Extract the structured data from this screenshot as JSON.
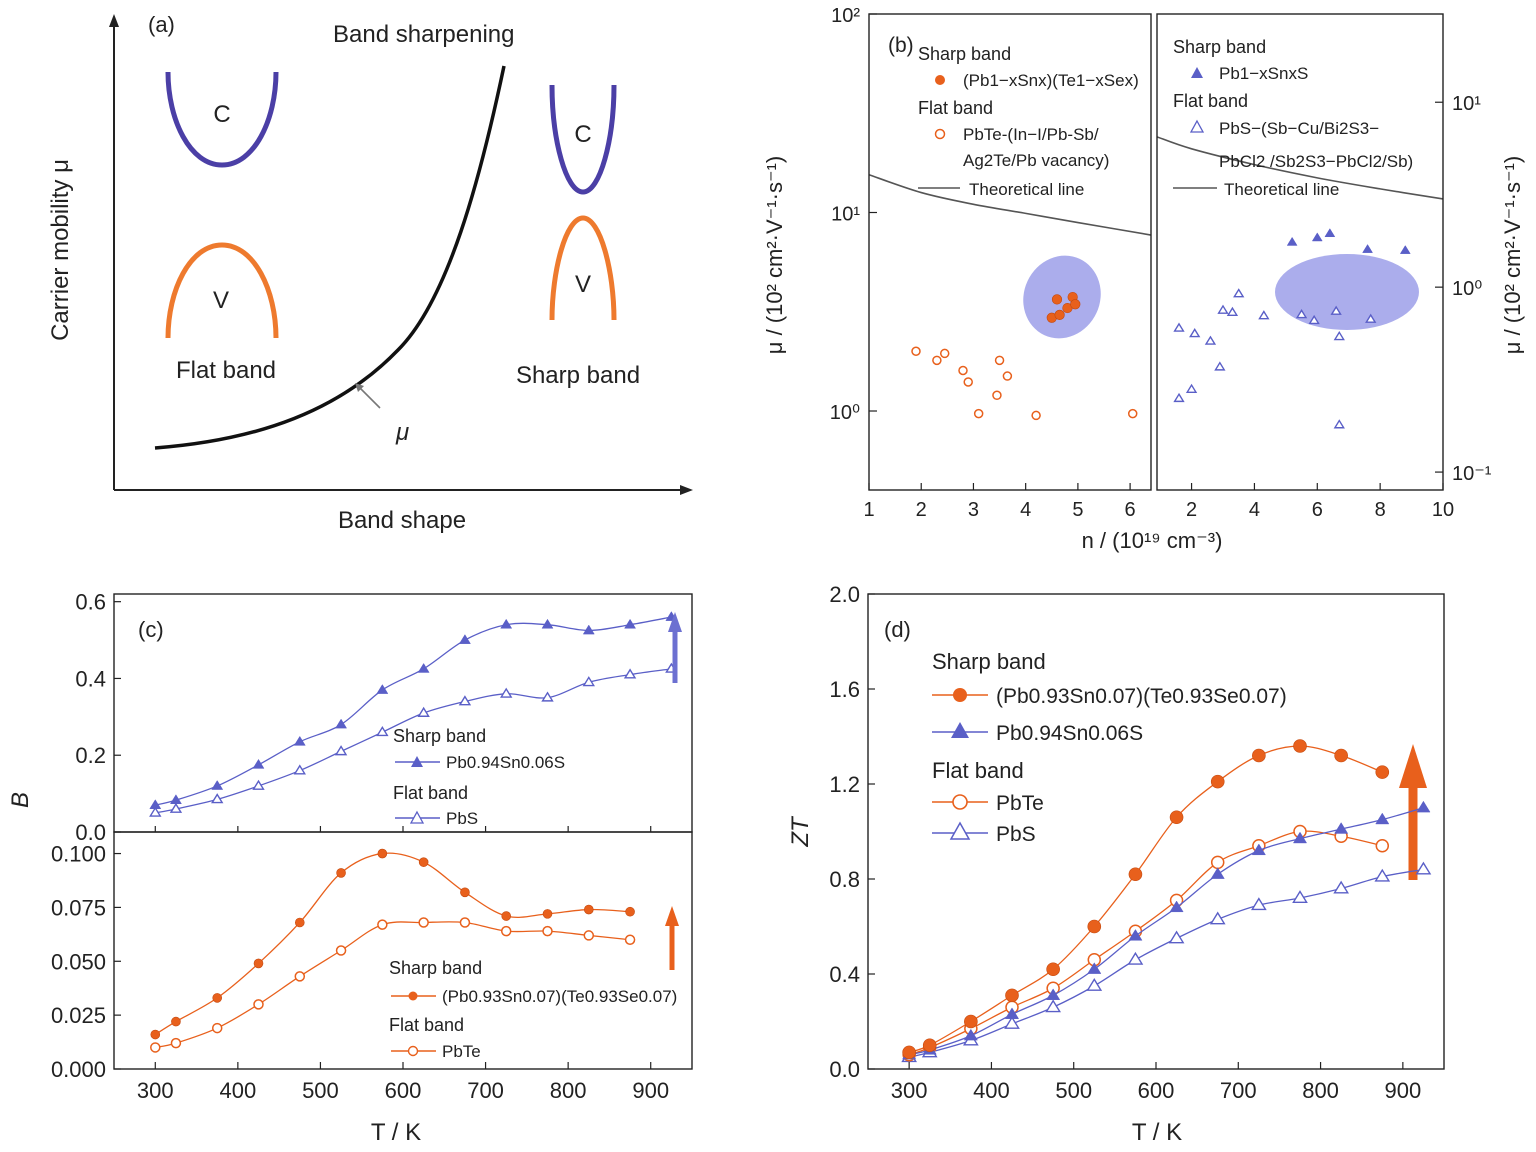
{
  "colors": {
    "orange": "#e8601c",
    "blue": "#5a5fc7",
    "conduction": "#4b3fa6",
    "ellipse": "#8f92e6",
    "theory": "#555555",
    "axis": "#222222"
  },
  "panel_a": {
    "label": "(a)",
    "title": "Band sharpening",
    "ylabel": "Carrier mobility μ",
    "xlabel": "Band shape",
    "flat_caption": "Flat band",
    "sharp_caption": "Sharp band",
    "conduction_label": "C",
    "valence_label": "V",
    "curve_label": "μ"
  },
  "panel_b": {
    "label": "(b)",
    "ylabel_left": "μ / (10² cm²·V⁻¹·s⁻¹)",
    "ylabel_right": "μ / (10² cm²·V⁻¹·s⁻¹)",
    "xlabel": "n / (10¹⁹ cm⁻³)",
    "left_ticks_x": [
      "1",
      "2",
      "3",
      "4",
      "5",
      "6"
    ],
    "right_ticks_x": [
      "2",
      "4",
      "6",
      "8",
      "10"
    ],
    "left_ticks_y": [
      "10⁰",
      "10¹",
      "10²"
    ],
    "right_ticks_y": [
      "10⁻¹",
      "10⁰",
      "10¹"
    ],
    "left_legend": {
      "sharp_title": "Sharp band",
      "sharp_entry": "(Pb1−xSnx)(Te1−xSex)",
      "flat_title": "Flat band",
      "flat_entry_1": "PbTe-(In−I/Pb-Sb/",
      "flat_entry_2": "Ag2Te/Pb vacancy)",
      "theory": "Theoretical line"
    },
    "right_legend": {
      "sharp_title": "Sharp band",
      "sharp_entry": "Pb1−xSnxS",
      "flat_title": "Flat band",
      "flat_entry_1": "PbS−(Sb−Cu/Bi2S3−",
      "flat_entry_2": "PbCl2 /Sb2S3−PbCl2/Sb)",
      "theory": "Theoretical line"
    }
  },
  "panel_c": {
    "label": "(c)",
    "ylabel": "B",
    "xlabel": "T / K",
    "x_ticks": [
      "300",
      "400",
      "500",
      "600",
      "700",
      "800",
      "900"
    ],
    "top_y_ticks": [
      "0.0",
      "0.2",
      "0.4",
      "0.6"
    ],
    "bottom_y_ticks": [
      "0.000",
      "0.025",
      "0.050",
      "0.075",
      "0.100"
    ],
    "top_legend": {
      "sharp_title": "Sharp band",
      "sharp_entry": "Pb0.94Sn0.06S",
      "flat_title": "Flat band",
      "flat_entry": "PbS"
    },
    "bottom_legend": {
      "sharp_title": "Sharp band",
      "sharp_entry": "(Pb0.93Sn0.07)(Te0.93Se0.07)",
      "flat_title": "Flat band",
      "flat_entry": "PbTe"
    }
  },
  "panel_d": {
    "label": "(d)",
    "ylabel": "ZT",
    "xlabel": "T / K",
    "x_ticks": [
      "300",
      "400",
      "500",
      "600",
      "700",
      "800",
      "900"
    ],
    "y_ticks": [
      "0.0",
      "0.4",
      "0.8",
      "1.2",
      "1.6",
      "2.0"
    ],
    "legend": {
      "sharp_title": "Sharp band",
      "entry1": "(Pb0.93Sn0.07)(Te0.93Se0.07)",
      "entry2": "Pb0.94Sn0.06S",
      "flat_title": "Flat band",
      "entry3": "PbTe",
      "entry4": "PbS"
    }
  },
  "chart_data": [
    {
      "panel": "a",
      "type": "line",
      "title": "Band sharpening",
      "xlabel": "Band shape",
      "ylabel": "Carrier mobility μ",
      "series": [
        {
          "name": "μ",
          "shape": "increasing convex curve"
        }
      ]
    },
    {
      "panel": "b-left",
      "type": "scatter",
      "yscale": "log",
      "xlabel": "n / (10¹⁹ cm⁻³)",
      "ylabel": "μ / (10² cm²·V⁻¹·s⁻¹)",
      "xlim": [
        1,
        6.4
      ],
      "ylim": [
        0.4,
        100
      ],
      "series": [
        {
          "name": "(Pb1−xSnx)(Te1−xSex)",
          "x": [
            4.5,
            4.65,
            4.8,
            4.6,
            4.9,
            4.95
          ],
          "y": [
            2.95,
            3.05,
            3.3,
            3.65,
            3.75,
            3.45
          ]
        },
        {
          "name": "PbTe-(In−I/Pb-Sb/Ag2Te/Pb vacancy)",
          "x": [
            1.9,
            2.3,
            2.45,
            2.8,
            2.9,
            3.1,
            3.45,
            3.5,
            3.65,
            4.2,
            6.05
          ],
          "y": [
            2.0,
            1.8,
            1.95,
            1.6,
            1.4,
            0.97,
            1.2,
            1.8,
            1.5,
            0.95,
            0.97
          ]
        },
        {
          "name": "Theoretical line",
          "x": [
            1.0,
            2.0,
            3.0,
            4.0,
            5.0,
            6.4
          ],
          "y": [
            15.5,
            12.6,
            11.0,
            9.9,
            8.9,
            7.7
          ]
        }
      ]
    },
    {
      "panel": "b-right",
      "type": "scatter",
      "yscale": "log",
      "xlabel": "n / (10¹⁹ cm⁻³)",
      "ylabel": "μ / (10² cm²·V⁻¹·s⁻¹)",
      "xlim": [
        0.9,
        10
      ],
      "ylim": [
        0.08,
        30
      ],
      "series": [
        {
          "name": "Pb1−xSnxS",
          "x": [
            5.2,
            6.0,
            6.4,
            7.6,
            8.8
          ],
          "y": [
            1.75,
            1.85,
            1.95,
            1.6,
            1.58
          ]
        },
        {
          "name": "PbS−(Sb−Cu/Bi2S3−PbCl2/Sb2S3−PbCl2/Sb)",
          "x": [
            1.6,
            1.6,
            2.0,
            2.1,
            2.6,
            2.9,
            3.0,
            3.3,
            3.5,
            4.3,
            5.5,
            5.9,
            6.6,
            6.7,
            6.7,
            7.7
          ],
          "y": [
            0.6,
            0.25,
            0.28,
            0.56,
            0.51,
            0.37,
            0.75,
            0.73,
            0.92,
            0.7,
            0.71,
            0.66,
            0.74,
            0.54,
            0.18,
            0.67
          ]
        },
        {
          "name": "Theoretical line",
          "x": [
            0.9,
            2.0,
            4.0,
            6.0,
            8.0,
            10.0
          ],
          "y": [
            6.5,
            5.6,
            4.6,
            3.9,
            3.4,
            3.0
          ]
        }
      ]
    },
    {
      "panel": "c-top",
      "type": "line",
      "xlabel": "T / K",
      "ylabel": "B",
      "xlim": [
        250,
        950
      ],
      "ylim": [
        0,
        0.62
      ],
      "series": [
        {
          "name": "Pb0.94Sn0.06S",
          "x": [
            300,
            325,
            375,
            425,
            475,
            525,
            575,
            625,
            675,
            725,
            775,
            825,
            875,
            925
          ],
          "y": [
            0.07,
            0.083,
            0.12,
            0.175,
            0.235,
            0.28,
            0.37,
            0.425,
            0.5,
            0.54,
            0.54,
            0.525,
            0.54,
            0.56
          ]
        },
        {
          "name": "PbS",
          "x": [
            300,
            325,
            375,
            425,
            475,
            525,
            575,
            625,
            675,
            725,
            775,
            825,
            875,
            925
          ],
          "y": [
            0.05,
            0.06,
            0.085,
            0.12,
            0.16,
            0.21,
            0.26,
            0.31,
            0.34,
            0.36,
            0.35,
            0.39,
            0.41,
            0.425
          ]
        }
      ]
    },
    {
      "panel": "c-bottom",
      "type": "line",
      "xlabel": "T / K",
      "ylabel": "B",
      "xlim": [
        250,
        950
      ],
      "ylim": [
        0,
        0.11
      ],
      "series": [
        {
          "name": "(Pb0.93Sn0.07)(Te0.93Se0.07)",
          "x": [
            300,
            325,
            375,
            425,
            475,
            525,
            575,
            625,
            675,
            725,
            775,
            825,
            875
          ],
          "y": [
            0.016,
            0.022,
            0.033,
            0.049,
            0.068,
            0.091,
            0.1,
            0.096,
            0.082,
            0.071,
            0.072,
            0.074,
            0.073
          ]
        },
        {
          "name": "PbTe",
          "x": [
            300,
            325,
            375,
            425,
            475,
            525,
            575,
            625,
            675,
            725,
            775,
            825,
            875
          ],
          "y": [
            0.01,
            0.012,
            0.019,
            0.03,
            0.043,
            0.055,
            0.067,
            0.068,
            0.068,
            0.064,
            0.064,
            0.062,
            0.06
          ]
        }
      ]
    },
    {
      "panel": "d",
      "type": "line",
      "xlabel": "T / K",
      "ylabel": "ZT",
      "xlim": [
        250,
        950
      ],
      "ylim": [
        0,
        2.0
      ],
      "series": [
        {
          "name": "(Pb0.93Sn0.07)(Te0.93Se0.07)",
          "x": [
            300,
            325,
            375,
            425,
            475,
            525,
            575,
            625,
            675,
            725,
            775,
            825,
            875
          ],
          "y": [
            0.07,
            0.1,
            0.2,
            0.31,
            0.42,
            0.6,
            0.82,
            1.06,
            1.21,
            1.32,
            1.36,
            1.32,
            1.25
          ]
        },
        {
          "name": "Pb0.94Sn0.06S",
          "x": [
            300,
            325,
            375,
            425,
            475,
            525,
            575,
            625,
            675,
            725,
            775,
            825,
            875,
            925
          ],
          "y": [
            0.06,
            0.08,
            0.14,
            0.23,
            0.31,
            0.42,
            0.56,
            0.68,
            0.82,
            0.92,
            0.97,
            1.01,
            1.05,
            1.1
          ]
        },
        {
          "name": "PbTe",
          "x": [
            300,
            325,
            375,
            425,
            475,
            525,
            575,
            625,
            675,
            725,
            775,
            825,
            875
          ],
          "y": [
            0.06,
            0.09,
            0.17,
            0.26,
            0.34,
            0.46,
            0.58,
            0.71,
            0.87,
            0.94,
            1.0,
            0.98,
            0.94
          ]
        },
        {
          "name": "PbS",
          "x": [
            300,
            325,
            375,
            425,
            475,
            525,
            575,
            625,
            675,
            725,
            775,
            825,
            875,
            925
          ],
          "y": [
            0.05,
            0.07,
            0.12,
            0.19,
            0.26,
            0.35,
            0.46,
            0.55,
            0.63,
            0.69,
            0.72,
            0.76,
            0.81,
            0.84
          ]
        }
      ]
    }
  ]
}
